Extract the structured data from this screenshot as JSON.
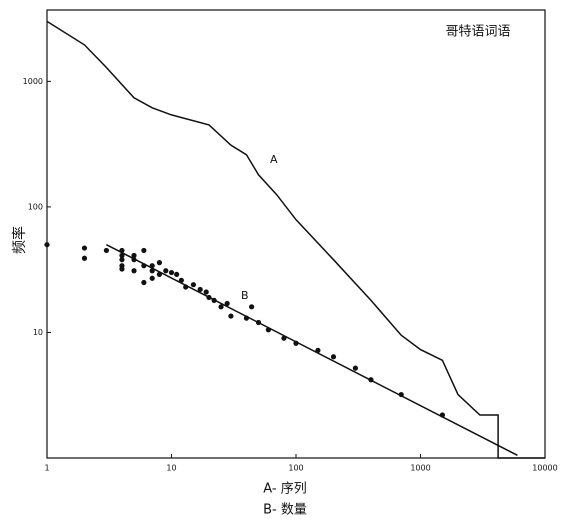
{
  "chart_data": {
    "type": "line",
    "annotations": [
      "哥特语词语",
      "A- 序列",
      "B- 数量"
    ],
    "ylabel": "频率",
    "xscale": "log",
    "yscale": "log",
    "xlim": [
      1,
      10000
    ],
    "ylim": [
      1,
      3700
    ],
    "xticks": [
      1,
      10,
      100,
      1000,
      10000
    ],
    "yticks": [
      10,
      100,
      1000
    ],
    "series": [
      {
        "name": "A",
        "mode": "line",
        "color": "#111",
        "x": [
          1,
          2,
          3,
          5,
          7,
          10,
          20,
          30,
          40,
          50,
          70,
          100,
          200,
          400,
          700,
          1000,
          1500,
          2000,
          3000,
          4200,
          4200,
          6000,
          10000
        ],
        "values": [
          3000,
          1950,
          1290,
          740,
          615,
          540,
          450,
          310,
          260,
          180,
          125,
          79,
          38,
          18,
          9.5,
          7.3,
          6,
          3.2,
          2.2,
          2.2,
          1,
          1,
          1
        ]
      },
      {
        "name": "B",
        "mode": "markers",
        "color": "#111",
        "x": [
          1,
          2,
          2,
          3,
          4,
          4,
          4,
          4,
          4,
          5,
          5,
          5,
          6,
          6,
          6,
          7,
          7,
          7,
          8,
          8,
          9,
          10,
          11,
          12,
          13,
          15,
          17,
          19,
          20,
          22,
          25,
          28,
          30,
          44,
          40,
          50,
          60,
          80,
          100,
          150,
          200,
          300,
          400,
          700,
          1500
        ],
        "values": [
          50,
          47,
          39,
          45,
          45,
          41,
          38,
          34,
          32,
          41,
          38,
          31,
          45,
          25,
          34,
          34,
          31,
          27,
          36,
          29,
          31,
          30,
          29,
          26,
          23,
          24,
          22,
          21,
          19,
          18,
          16,
          17,
          13.5,
          16,
          13,
          12,
          10.5,
          9,
          8.2,
          7.2,
          6.4,
          5.2,
          4.2,
          3.2,
          2.2
        ]
      },
      {
        "mode": "line",
        "color": "#111",
        "x": [
          3,
          6000
        ],
        "values": [
          50,
          1.05
        ]
      }
    ]
  }
}
